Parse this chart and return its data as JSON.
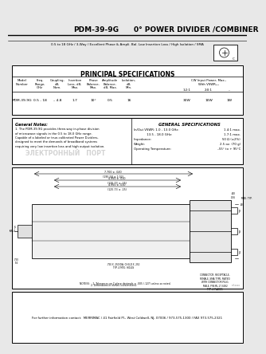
{
  "title_left": "PDM-39-9G",
  "title_right": "0° POWER DIVIDER /COMBINER",
  "subtitle": "0.5 to 18 GHz / 3-Way / Excellent Phase & Ampli. Bal. Low Insertion Loss / High Isolation / SMA",
  "bg_color": "#e8e8e8",
  "principal_specs_title": "PRINCIPAL SPECIFICATIONS",
  "table_row": [
    "PDM-39-9G",
    "0.5 - 18",
    "– 4.8",
    "1.7",
    "10°",
    "0.5",
    "16",
    "30W",
    "10W",
    "1W"
  ],
  "general_notes_title": "General Notes:",
  "watermark": "ЭЛЕКТРОННЫЙ   ПОРТ",
  "general_specs_title": "GENERAL SPECIFICATIONS",
  "general_specs": [
    [
      "In/Out VSWR: 1.0 - 13.0 GHz:",
      "1.4:1 max."
    ],
    [
      "13.5 - 18.0 GHz:",
      "1.7:1 max."
    ],
    [
      "Impedance:",
      "50 Ω (±2%)"
    ],
    [
      "Weight:",
      "2.5 oz. (70 g)"
    ],
    [
      "Operating Temperature:",
      "–55° to + 95°C"
    ]
  ],
  "footer_text": "For further information contact:  MERRIMAC / 41 Fairfield Pl., West Caldwell, NJ, 07006 / 973-575-1300 / FAX 973-575-2321",
  "border_color": "#000000",
  "white": "#ffffff"
}
